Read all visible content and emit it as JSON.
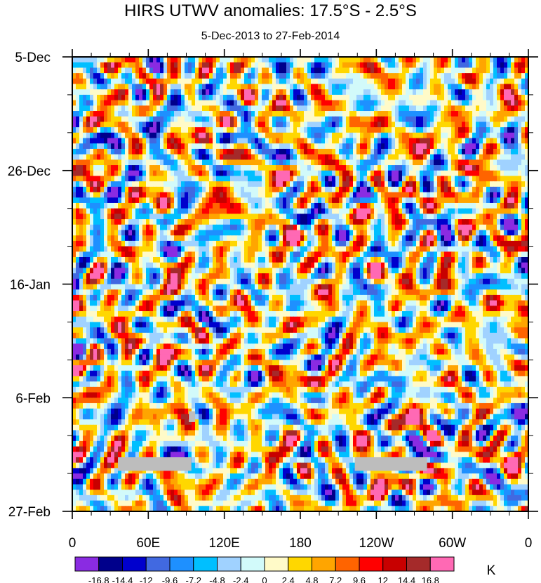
{
  "chart_data": {
    "type": "heatmap",
    "title": "HIRS UTWV anomalies: 17.5°S - 2.5°S",
    "subtitle": "5-Dec-2013 to 27-Feb-2014",
    "x_axis": {
      "ticks": [
        "0",
        "60E",
        "120E",
        "180",
        "120W",
        "60W",
        "0"
      ],
      "tick_values": [
        0,
        60,
        120,
        180,
        240,
        300,
        360
      ],
      "range": [
        0,
        360
      ]
    },
    "y_axis": {
      "ticks": [
        "5-Dec",
        "26-Dec",
        "16-Jan",
        "6-Feb",
        "27-Feb"
      ],
      "tick_values": [
        0,
        21,
        42,
        63,
        84
      ],
      "range": [
        0,
        84
      ],
      "direction": "top-to-bottom"
    },
    "colorbar": {
      "unit": "K",
      "levels": [
        "-16.8",
        "-14.4",
        "-12",
        "-9.6",
        "-7.2",
        "-4.8",
        "-2.4",
        "0",
        "2.4",
        "4.8",
        "7.2",
        "9.6",
        "12",
        "14.4",
        "16.8"
      ],
      "colors": [
        "#8a2be2",
        "#00008b",
        "#0000cd",
        "#4169e1",
        "#1e90ff",
        "#00bfff",
        "#a0d2ff",
        "#d2fafa",
        "#fffac8",
        "#ffd700",
        "#ffa500",
        "#ff6400",
        "#ff0000",
        "#c80000",
        "#a52a2a",
        "#ff69b4"
      ]
    },
    "missing_data": [
      {
        "lon_range": [
          36,
          94
        ],
        "day_range": [
          74,
          76.5
        ]
      },
      {
        "lon_range": [
          223,
          280
        ],
        "day_range": [
          74,
          76.5
        ]
      },
      {
        "lon_range": [
          92,
          97
        ],
        "day_range": [
          65.5,
          67.5
        ]
      }
    ],
    "anomaly_features": [
      {
        "lon": 35,
        "day": 33,
        "value": -10
      },
      {
        "lon": 75,
        "day": 56,
        "value": 13
      },
      {
        "lon": 120,
        "day": 27,
        "value": 11
      },
      {
        "lon": 160,
        "day": 37,
        "value": 12
      },
      {
        "lon": 195,
        "day": 31,
        "value": 8
      },
      {
        "lon": 270,
        "day": 48,
        "value": 12
      },
      {
        "lon": 305,
        "day": 26,
        "value": 17
      },
      {
        "lon": 290,
        "day": 31,
        "value": -9
      },
      {
        "lon": 65,
        "day": 14,
        "value": -15
      },
      {
        "lon": 240,
        "day": 77,
        "value": 11
      }
    ]
  }
}
